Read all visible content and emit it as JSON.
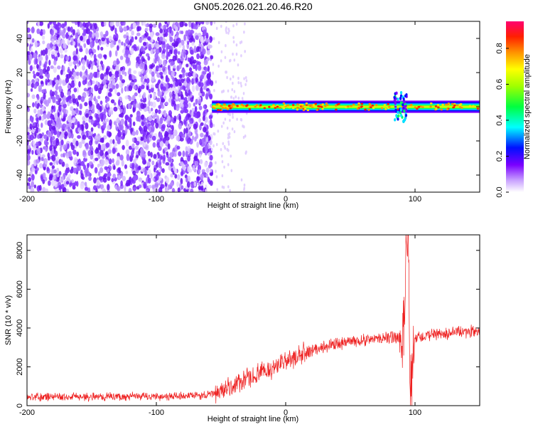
{
  "title": "GN05.2026.021.20.46.R20",
  "chart_data": [
    {
      "type": "heatmap",
      "xlabel": "Height of straight line (km)",
      "ylabel": "Frequency (Hz)",
      "xlim": [
        -200,
        150
      ],
      "ylim": [
        -50,
        50
      ],
      "xticks": [
        -200,
        -100,
        0,
        100
      ],
      "yticks": [
        -40,
        -20,
        0,
        20,
        40
      ],
      "grid": false,
      "description_of_regions": {
        "noise_region_x": [
          -200,
          -57
        ],
        "transition_scatter_x": [
          -57,
          -30
        ],
        "signal_band_x": [
          -57,
          150
        ],
        "signal_center_hz": 0,
        "signal_halfwidth_hz": 4,
        "disturbance_x": 88
      },
      "colorbar": {
        "label": "Normalized spectral amplitude",
        "range": [
          0,
          0.95
        ],
        "ticks": [
          0.0,
          0.2,
          0.4,
          0.6,
          0.8
        ],
        "tick_labels": [
          "0.0",
          "0.2",
          "0.4",
          "0.6",
          "0.8"
        ],
        "colors": [
          "#ffffff",
          "#7a00ff",
          "#0000ff",
          "#00ffff",
          "#00ff00",
          "#ffff00",
          "#ff8000",
          "#ff0000",
          "#ff0080"
        ]
      }
    },
    {
      "type": "line",
      "xlabel": "Height of straight line (km)",
      "ylabel": "SNR (10 * v/v)",
      "xlim": [
        -200,
        150
      ],
      "ylim": [
        0,
        8800
      ],
      "xticks": [
        -200,
        -100,
        0,
        100
      ],
      "yticks": [
        0,
        2000,
        4000,
        6000,
        8000
      ],
      "grid": false,
      "color": "#ee2020",
      "series": [
        {
          "name": "",
          "x": [
            -200,
            -150,
            -100,
            -80,
            -60,
            -50,
            -40,
            -30,
            -20,
            -10,
            0,
            10,
            20,
            30,
            40,
            50,
            60,
            70,
            80,
            86,
            90,
            92,
            94,
            95,
            96,
            98,
            100,
            110,
            120,
            130,
            140,
            150
          ],
          "y": [
            450,
            460,
            470,
            490,
            540,
            750,
            1050,
            1350,
            1650,
            1950,
            2250,
            2550,
            2850,
            3050,
            3200,
            3300,
            3380,
            3440,
            3500,
            3550,
            3650,
            5200,
            8800,
            8800,
            800,
            1200,
            3500,
            3620,
            3680,
            3740,
            3790,
            3830
          ]
        }
      ]
    }
  ]
}
